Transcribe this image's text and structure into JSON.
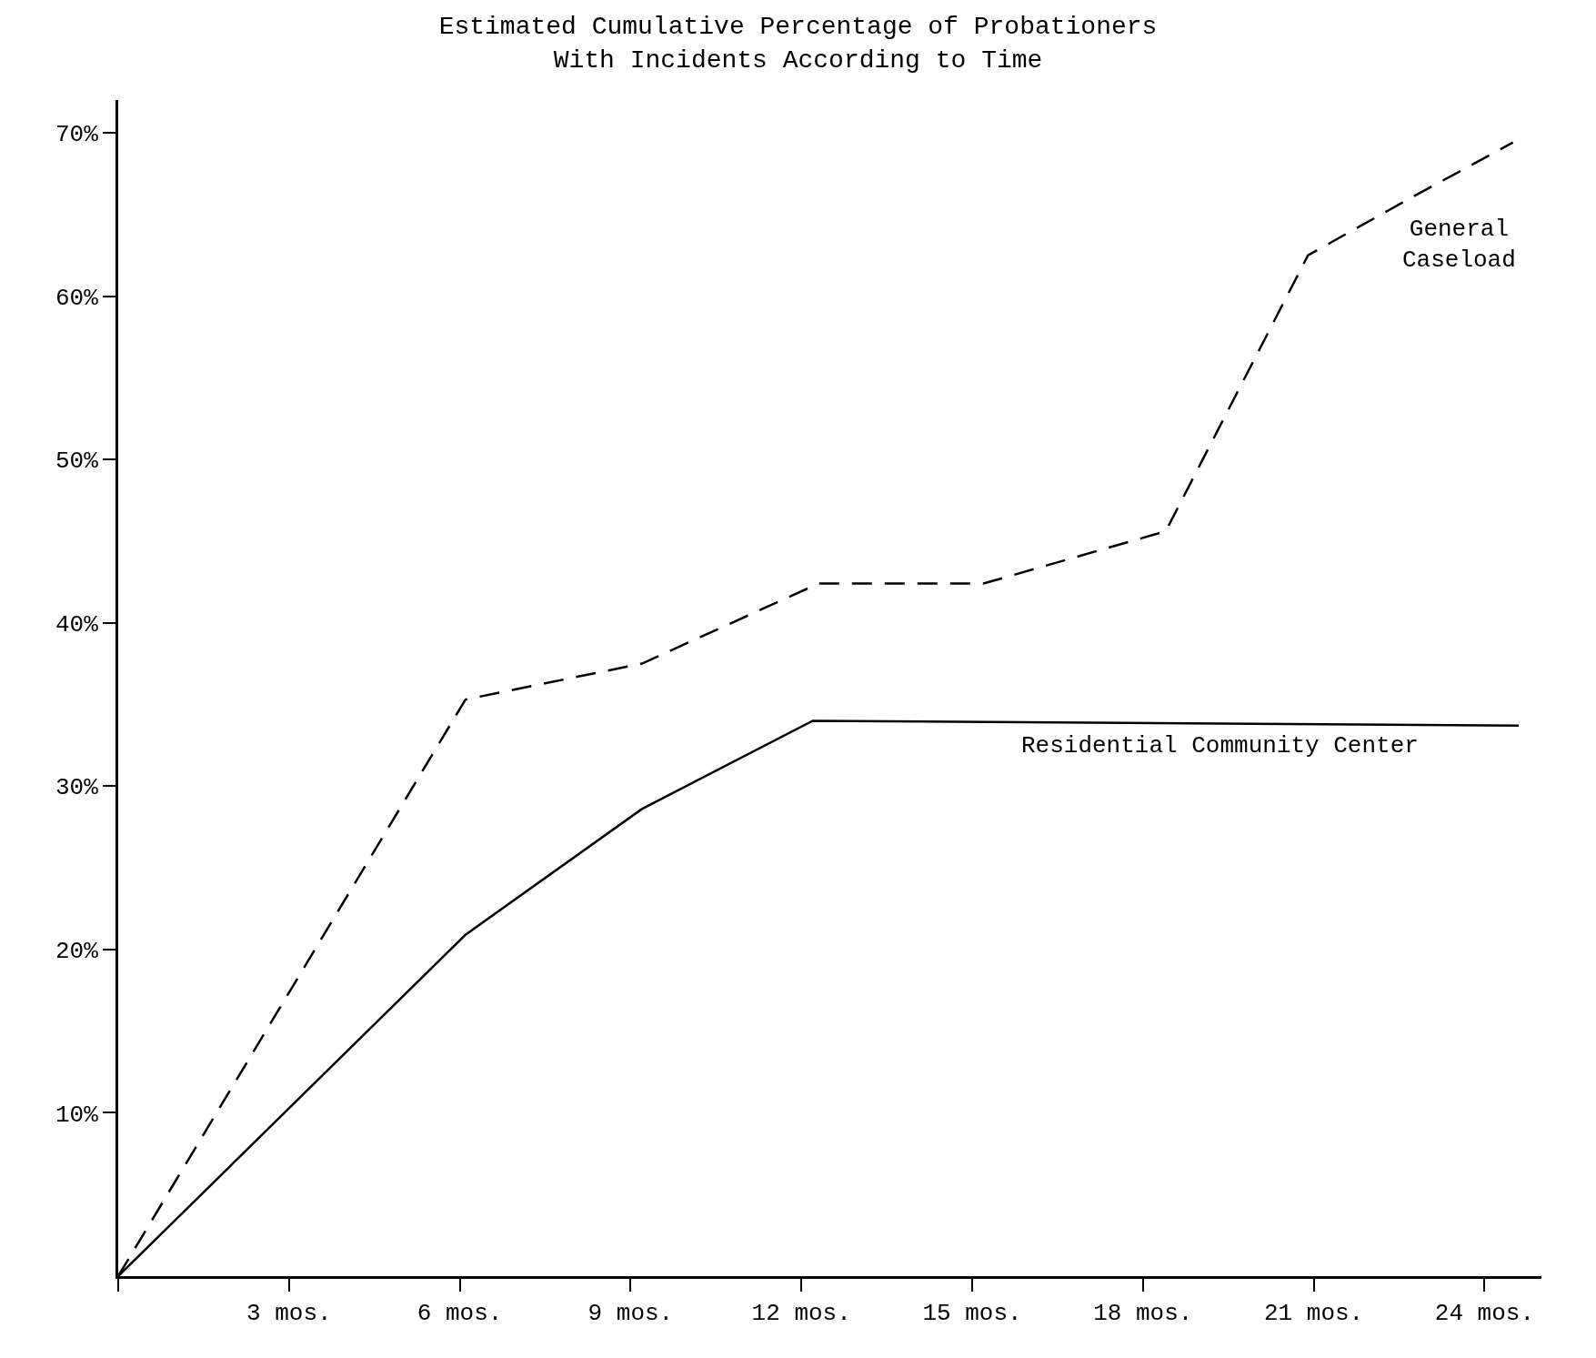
{
  "chart_data": {
    "type": "line",
    "title": "Estimated Cumulative Percentage of Probationers\nWith Incidents According to Time",
    "xlim": [
      0,
      25
    ],
    "ylim": [
      0,
      72
    ],
    "xticks": [
      {
        "value": 0,
        "label": null
      },
      {
        "value": 3,
        "label": "3 mos."
      },
      {
        "value": 6,
        "label": "6 mos."
      },
      {
        "value": 9,
        "label": "9 mos."
      },
      {
        "value": 12,
        "label": "12 mos."
      },
      {
        "value": 15,
        "label": "15 mos."
      },
      {
        "value": 18,
        "label": "18 mos."
      },
      {
        "value": 21,
        "label": "21 mos."
      },
      {
        "value": 24,
        "label": "24 mos."
      }
    ],
    "yticks": [
      {
        "value": 10,
        "label": "10%"
      },
      {
        "value": 20,
        "label": "20%"
      },
      {
        "value": 30,
        "label": "30%"
      },
      {
        "value": 40,
        "label": "40%"
      },
      {
        "value": 50,
        "label": "50%"
      },
      {
        "value": 60,
        "label": "60%"
      },
      {
        "value": 70,
        "label": "70%"
      }
    ],
    "legend": false,
    "marker": "none",
    "series": [
      {
        "name": "General\nCaseload",
        "color": "#000000",
        "line_style": "dashed",
        "x": [
          0,
          6.1,
          9.2,
          12.3,
          15.2,
          18.4,
          20.9,
          22.7,
          24.5
        ],
        "values": [
          0,
          35.3,
          37.5,
          42.4,
          42.4,
          45.6,
          62.5,
          66,
          69.4
        ]
      },
      {
        "name": "Residential Community Center",
        "color": "#000000",
        "line_style": "solid",
        "x": [
          0,
          6.1,
          9.2,
          12.2,
          24.6
        ],
        "values": [
          0,
          20.9,
          28.6,
          34.0,
          33.7
        ]
      }
    ]
  }
}
